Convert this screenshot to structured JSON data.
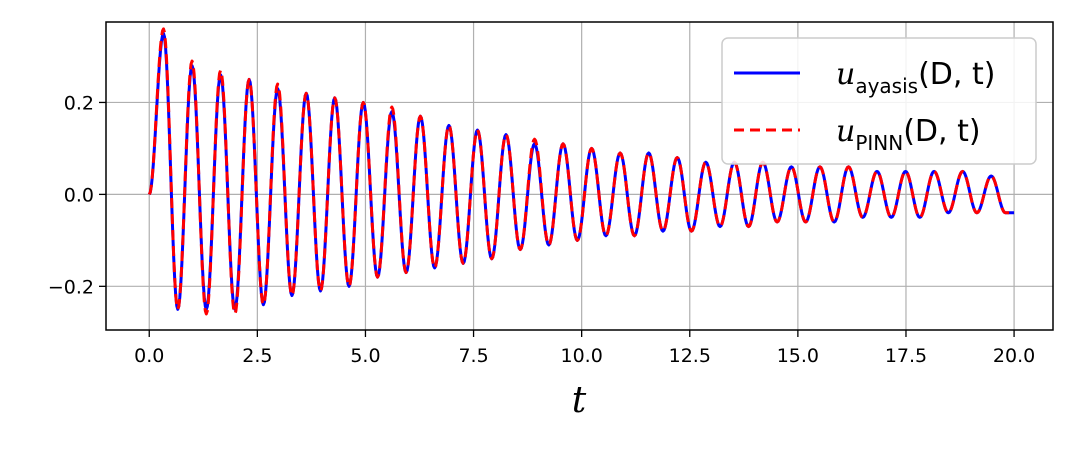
{
  "chart_data": {
    "type": "line",
    "xlabel": "t",
    "ylabel": "",
    "title": "",
    "xlim": [
      -1.0,
      20.9
    ],
    "ylim": [
      -0.295,
      0.375
    ],
    "xticks": [
      0.0,
      2.5,
      5.0,
      7.5,
      10.0,
      12.5,
      15.0,
      17.5,
      20.0
    ],
    "xtick_labels": [
      "0.0",
      "2.5",
      "5.0",
      "7.5",
      "10.0",
      "12.5",
      "15.0",
      "17.5",
      "20.0"
    ],
    "yticks": [
      -0.2,
      0.0,
      0.2
    ],
    "ytick_labels": [
      "−0.2",
      "0.0",
      "0.2"
    ],
    "grid": true,
    "legend_position": "top-right",
    "series": [
      {
        "name_base": "u",
        "name_sub": "ayasis",
        "name_args": "(D, t)",
        "color": "#0000ff",
        "style": "solid",
        "peaks": [
          [
            0.0,
            0.0
          ],
          [
            0.33,
            0.35
          ],
          [
            0.66,
            -0.25
          ],
          [
            0.99,
            0.28
          ],
          [
            1.32,
            -0.25
          ],
          [
            1.65,
            0.26
          ],
          [
            1.98,
            -0.25
          ],
          [
            2.31,
            0.25
          ],
          [
            2.64,
            -0.24
          ],
          [
            2.97,
            0.23
          ],
          [
            3.3,
            -0.22
          ],
          [
            3.63,
            0.22
          ],
          [
            3.96,
            -0.21
          ],
          [
            4.29,
            0.21
          ],
          [
            4.62,
            -0.2
          ],
          [
            4.95,
            0.2
          ],
          [
            5.28,
            -0.18
          ],
          [
            5.61,
            0.18
          ],
          [
            5.94,
            -0.17
          ],
          [
            6.27,
            0.17
          ],
          [
            6.6,
            -0.16
          ],
          [
            6.93,
            0.15
          ],
          [
            7.26,
            -0.15
          ],
          [
            7.59,
            0.14
          ],
          [
            7.92,
            -0.14
          ],
          [
            8.25,
            0.13
          ],
          [
            8.58,
            -0.12
          ],
          [
            8.91,
            0.11
          ],
          [
            9.24,
            -0.11
          ],
          [
            9.57,
            0.11
          ],
          [
            9.9,
            -0.1
          ],
          [
            10.23,
            0.1
          ],
          [
            10.56,
            -0.09
          ],
          [
            10.89,
            0.09
          ],
          [
            11.22,
            -0.09
          ],
          [
            11.55,
            0.09
          ],
          [
            11.88,
            -0.08
          ],
          [
            12.21,
            0.08
          ],
          [
            12.54,
            -0.08
          ],
          [
            12.87,
            0.07
          ],
          [
            13.2,
            -0.07
          ],
          [
            13.53,
            0.07
          ],
          [
            13.86,
            -0.07
          ],
          [
            14.19,
            0.07
          ],
          [
            14.52,
            -0.06
          ],
          [
            14.85,
            0.06
          ],
          [
            15.18,
            -0.06
          ],
          [
            15.51,
            0.06
          ],
          [
            15.84,
            -0.06
          ],
          [
            16.17,
            0.06
          ],
          [
            16.5,
            -0.05
          ],
          [
            16.83,
            0.05
          ],
          [
            17.16,
            -0.05
          ],
          [
            17.49,
            0.05
          ],
          [
            17.82,
            -0.05
          ],
          [
            18.15,
            0.05
          ],
          [
            18.48,
            -0.04
          ],
          [
            18.81,
            0.05
          ],
          [
            19.14,
            -0.04
          ],
          [
            19.47,
            0.04
          ],
          [
            19.8,
            -0.04
          ],
          [
            20.0,
            -0.04
          ]
        ]
      },
      {
        "name_base": "u",
        "name_sub": "PINN",
        "name_args": "(D, t)",
        "color": "#ff0000",
        "style": "dashed",
        "peaks": [
          [
            0.0,
            0.0
          ],
          [
            0.33,
            0.36
          ],
          [
            0.66,
            -0.25
          ],
          [
            0.99,
            0.29
          ],
          [
            1.32,
            -0.26
          ],
          [
            1.65,
            0.27
          ],
          [
            1.98,
            -0.26
          ],
          [
            2.31,
            0.25
          ],
          [
            2.64,
            -0.24
          ],
          [
            2.97,
            0.24
          ],
          [
            3.3,
            -0.22
          ],
          [
            3.63,
            0.22
          ],
          [
            3.96,
            -0.21
          ],
          [
            4.29,
            0.21
          ],
          [
            4.62,
            -0.2
          ],
          [
            4.95,
            0.2
          ],
          [
            5.28,
            -0.18
          ],
          [
            5.61,
            0.19
          ],
          [
            5.94,
            -0.17
          ],
          [
            6.27,
            0.17
          ],
          [
            6.6,
            -0.16
          ],
          [
            6.93,
            0.15
          ],
          [
            7.26,
            -0.15
          ],
          [
            7.59,
            0.14
          ],
          [
            7.92,
            -0.14
          ],
          [
            8.25,
            0.13
          ],
          [
            8.58,
            -0.12
          ],
          [
            8.91,
            0.12
          ],
          [
            9.24,
            -0.11
          ],
          [
            9.57,
            0.11
          ],
          [
            9.9,
            -0.1
          ],
          [
            10.23,
            0.1
          ],
          [
            10.56,
            -0.09
          ],
          [
            10.89,
            0.09
          ],
          [
            11.22,
            -0.09
          ],
          [
            11.55,
            0.09
          ],
          [
            11.88,
            -0.08
          ],
          [
            12.21,
            0.08
          ],
          [
            12.54,
            -0.08
          ],
          [
            12.87,
            0.07
          ],
          [
            13.2,
            -0.07
          ],
          [
            13.53,
            0.07
          ],
          [
            13.86,
            -0.07
          ],
          [
            14.19,
            0.07
          ],
          [
            14.52,
            -0.06
          ],
          [
            14.85,
            0.06
          ],
          [
            15.18,
            -0.06
          ],
          [
            15.51,
            0.06
          ],
          [
            15.84,
            -0.06
          ],
          [
            16.17,
            0.06
          ],
          [
            16.5,
            -0.05
          ],
          [
            16.83,
            0.05
          ],
          [
            17.16,
            -0.05
          ],
          [
            17.49,
            0.05
          ],
          [
            17.82,
            -0.05
          ],
          [
            18.15,
            0.05
          ],
          [
            18.48,
            -0.04
          ],
          [
            18.81,
            0.05
          ],
          [
            19.14,
            -0.04
          ],
          [
            19.47,
            0.04
          ],
          [
            19.8,
            -0.04
          ],
          [
            20.0,
            -0.04
          ]
        ]
      }
    ]
  }
}
